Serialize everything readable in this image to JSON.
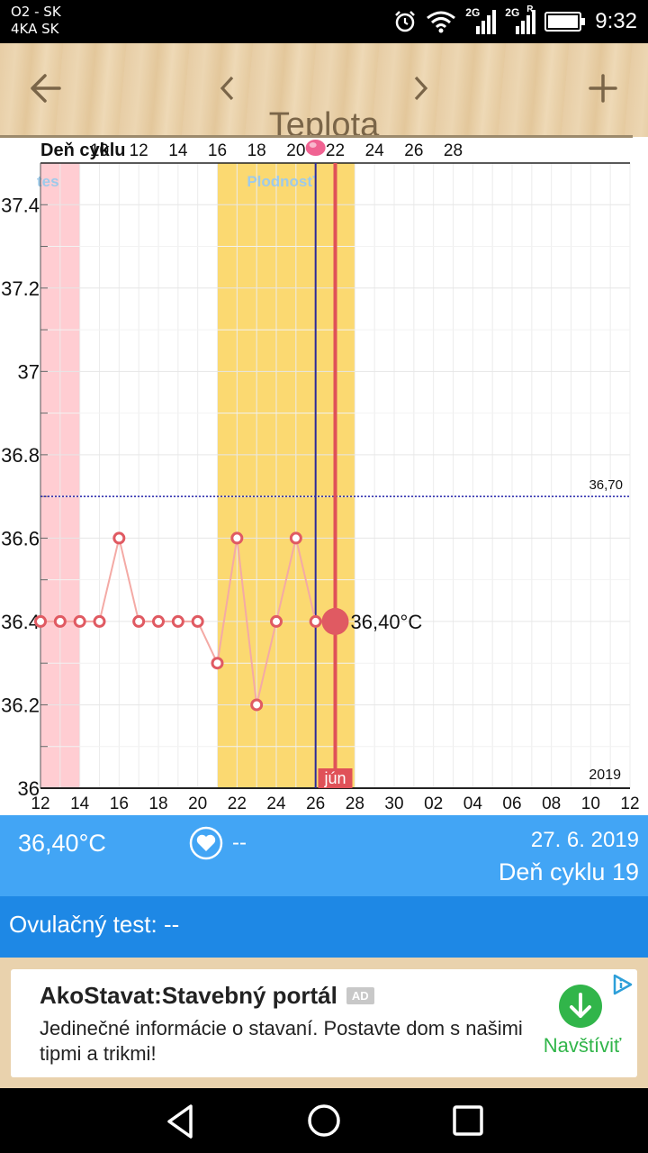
{
  "status_bar": {
    "carrier_line1": "O2 - SK",
    "carrier_line2": "4KA SK",
    "network1": "2G",
    "network2": "2G",
    "roaming": "R",
    "time": "9:32"
  },
  "app_bar": {
    "title": "Teplota",
    "back_icon": "arrow-left-icon",
    "prev_icon": "chevron-left-icon",
    "next_icon": "chevron-right-icon",
    "add_icon": "plus-icon"
  },
  "chart_data": {
    "type": "line",
    "top_axis_label": "Deň cyklu",
    "top_ticks": [
      "10",
      "12",
      "14",
      "16",
      "18",
      "20",
      "22",
      "24",
      "26",
      "28"
    ],
    "x_tick_labels": [
      "12",
      "14",
      "16",
      "18",
      "20",
      "22",
      "24",
      "26",
      "28",
      "30",
      "02",
      "04",
      "06",
      "08",
      "10",
      "12"
    ],
    "y_ticks": [
      36,
      36.2,
      36.4,
      36.6,
      36.8,
      37,
      37.2,
      37.4
    ],
    "y_tick_labels": [
      "36",
      "36.2",
      "36.4",
      "36.6",
      "36.8",
      "37",
      "37.2",
      "37.4"
    ],
    "ylim": [
      36,
      37.5
    ],
    "xlim_day_index": [
      0,
      30
    ],
    "points_day_index": [
      0,
      1,
      2,
      3,
      4,
      5,
      6,
      7,
      8,
      9,
      10,
      11,
      12,
      13,
      14
    ],
    "temperature_values": [
      36.4,
      36.4,
      36.4,
      36.4,
      36.6,
      36.4,
      36.4,
      36.4,
      36.4,
      36.3,
      36.6,
      36.2,
      36.4,
      36.6,
      36.4
    ],
    "current_point": {
      "day_index": 15,
      "value": 36.4,
      "label": "36,40°C"
    },
    "coverline": {
      "value": 36.7,
      "label": "36,70"
    },
    "period_band": {
      "start_day_index": 0,
      "end_day_index": 2,
      "label": "tes"
    },
    "fertile_band": {
      "start_day_index": 9,
      "end_day_index": 16,
      "label": "Plodnosť"
    },
    "ovulation_line_day_index": 14,
    "today_line_day_index": 15,
    "month_label": "jún",
    "year_label": "2019",
    "colors": {
      "period": "#ffcdd2",
      "fertile": "#fbd971",
      "line": "#f4aaa5",
      "points": "#e05a62",
      "coverline": "#2222aa",
      "ovulation": "#2a2a9a",
      "today": "#e05158",
      "fertile_label": "#9dcaea",
      "ovulation_marker": "#f06292"
    }
  },
  "info": {
    "temperature": "36,40°C",
    "heart_icon": "heart-icon",
    "intercourse_value": "--",
    "date": "27. 6. 2019",
    "cycle_day": "Deň cyklu 19"
  },
  "ovulation_test": {
    "label": "Ovulačný test: --"
  },
  "ad": {
    "title": "AkoStavat:Stavebný portál",
    "badge": "AD",
    "body": "Jedinečné informácie o stavaní. Postavte dom s našimi tipmi a trikmi!",
    "cta": "Navštíviť",
    "info_icon": "adchoices-icon",
    "download_icon": "download-arrow-icon"
  },
  "nav_bar": {
    "back_icon": "triangle-back-icon",
    "home_icon": "circle-home-icon",
    "recents_icon": "square-recents-icon"
  }
}
